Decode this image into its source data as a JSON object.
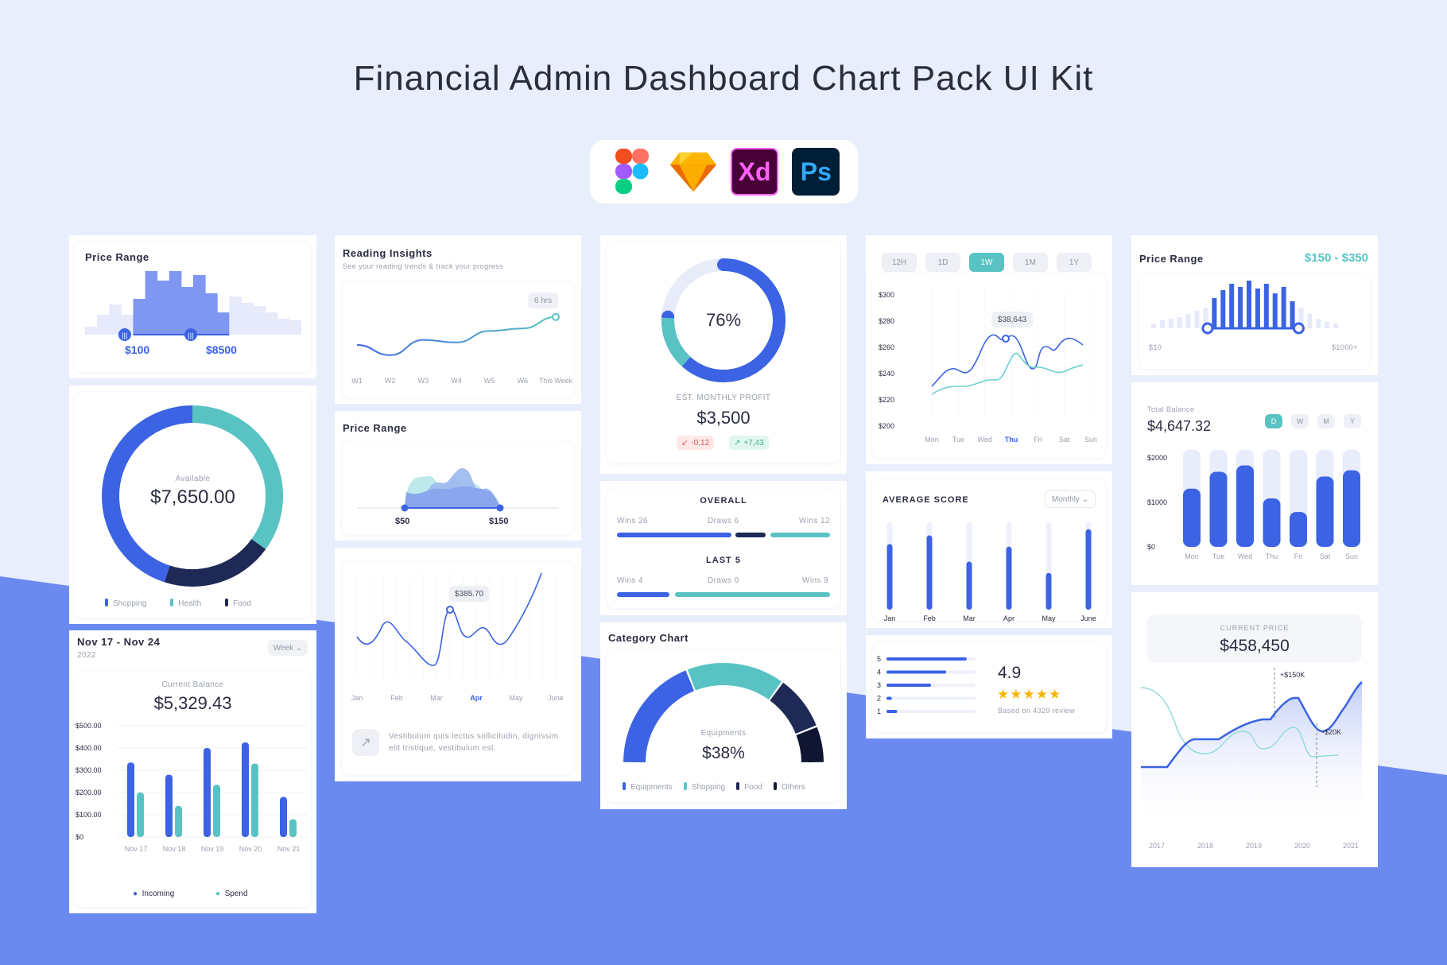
{
  "page": {
    "title": "Financial Admin Dashboard Chart Pack UI Kit"
  },
  "tools": [
    {
      "name": "figma-icon",
      "label": ""
    },
    {
      "name": "sketch-icon",
      "label": ""
    },
    {
      "name": "xd-icon",
      "label": "Xd"
    },
    {
      "name": "photoshop-icon",
      "label": "Ps"
    }
  ],
  "price_range_1": {
    "title": "Price Range",
    "min_label": "$100",
    "max_label": "$8500"
  },
  "available_donut": {
    "label": "Available",
    "value": "$7,650.00",
    "legend": [
      "Shopping",
      "Health",
      "Food"
    ],
    "chart_data": {
      "type": "pie",
      "categories": [
        "Shopping",
        "Health",
        "Food"
      ],
      "values": [
        45,
        35,
        20
      ]
    }
  },
  "balance_bars": {
    "range": "Nov 17 - Nov 24",
    "year": "2022",
    "period": "Week",
    "label": "Current Balance",
    "value": "$5,329.43",
    "yticks": [
      "$500.00",
      "$400.00",
      "$300.00",
      "$200.00",
      "$100.00",
      "$0"
    ],
    "legend": [
      "Incoming",
      "Spend"
    ],
    "chart_data": {
      "type": "bar",
      "categories": [
        "Nov 17",
        "Nov 18",
        "Nov 19",
        "Nov 20",
        "Nov 21"
      ],
      "ylim": [
        0,
        500
      ],
      "series": [
        {
          "name": "Incoming",
          "values": [
            335,
            280,
            400,
            425,
            180
          ]
        },
        {
          "name": "Spend",
          "values": [
            200,
            140,
            235,
            330,
            80
          ]
        }
      ]
    }
  },
  "reading": {
    "title": "Reading Insights",
    "subtitle": "See your reading trends & track your progress",
    "badge": "6 hrs",
    "chart_data": {
      "type": "line",
      "categories": [
        "W1",
        "W2",
        "W3",
        "W4",
        "W5",
        "W6",
        "This Week"
      ],
      "values": [
        2,
        1.2,
        2.4,
        2.2,
        3.1,
        3.3,
        4.2
      ]
    }
  },
  "price_range_2": {
    "title": "Price Range",
    "min_label": "$50",
    "max_label": "$150"
  },
  "monthly_line": {
    "tooltip": "$385.70",
    "description": "Vestibulum quis lectus sollicitudin, dignissim elit tristique, vestibulum est.",
    "chart_data": {
      "type": "line",
      "categories": [
        "Jan",
        "Feb",
        "Mar",
        "Apr",
        "May",
        "June"
      ],
      "highlight": "Apr"
    }
  },
  "profit": {
    "percent": "76%",
    "label": "EST. MONTHLY PROFIT",
    "value": "$3,500",
    "down": "-0,12",
    "up": "+7,43",
    "chart_data": {
      "type": "pie",
      "values": [
        76,
        24
      ]
    }
  },
  "score_bars": {
    "overall": "OVERALL",
    "last5": "LAST 5",
    "overall_labels": [
      "Wins 26",
      "Draws 6",
      "Wins 12"
    ],
    "last5_labels": [
      "Wins 4",
      "Draws 0",
      "Wins 9"
    ]
  },
  "category": {
    "title": "Category Chart",
    "label": "Equipments",
    "value": "$38%",
    "legend": [
      "Equipments",
      "Shopping",
      "Food",
      "Others"
    ],
    "chart_data": {
      "type": "pie",
      "categories": [
        "Equipments",
        "Shopping",
        "Food",
        "Others"
      ],
      "values": [
        38,
        32,
        18,
        12
      ]
    }
  },
  "week_line": {
    "tabs": [
      "12H",
      "1D",
      "1W",
      "1M",
      "1Y"
    ],
    "active_tab": "1W",
    "tooltip": "$38,643",
    "yticks": [
      "$300",
      "$280",
      "$260",
      "$240",
      "$220",
      "$200"
    ],
    "chart_data": {
      "type": "line",
      "categories": [
        "Mon",
        "Tue",
        "Wed",
        "Thu",
        "Fri",
        "Sat",
        "Sun"
      ],
      "highlight": "Thu",
      "ylim": [
        200,
        300
      ]
    }
  },
  "average_score": {
    "title": "AVERAGE SCORE",
    "period": "Monthly",
    "chart_data": {
      "type": "bar",
      "categories": [
        "Jan",
        "Feb",
        "Mar",
        "Apr",
        "May",
        "June"
      ],
      "values": [
        75,
        85,
        55,
        72,
        42,
        92
      ]
    }
  },
  "rating": {
    "value": "4.9",
    "caption": "Based on 4329 review",
    "rows": [
      "5",
      "4",
      "3",
      "2",
      "1"
    ],
    "chart_data": {
      "type": "bar",
      "categories": [
        "5",
        "4",
        "3",
        "2",
        "1"
      ],
      "values": [
        90,
        67,
        50,
        6,
        12
      ]
    }
  },
  "price_range_3": {
    "title": "Price Range",
    "range": "$150 - $350",
    "min_label": "$10",
    "max_label": "$1000+"
  },
  "total_balance": {
    "label": "Total Balance",
    "value": "$4,647.32",
    "tabs": [
      "D",
      "W",
      "M",
      "Y"
    ],
    "active_tab": "D",
    "yticks": [
      "$2000",
      "$1000",
      "$0"
    ],
    "chart_data": {
      "type": "bar",
      "categories": [
        "Mon",
        "Tue",
        "Wed",
        "Thu",
        "Fri",
        "Sat",
        "Sun"
      ],
      "ylim": [
        0,
        2000
      ],
      "values": [
        1200,
        1550,
        1680,
        1000,
        720,
        1450,
        1580
      ]
    }
  },
  "current_price": {
    "label": "CURRENT PRICE",
    "value": "$458,450",
    "up": "+$150K",
    "down": "-$20K",
    "chart_data": {
      "type": "area",
      "categories": [
        "2017",
        "2018",
        "2019",
        "2020",
        "2021"
      ]
    }
  }
}
